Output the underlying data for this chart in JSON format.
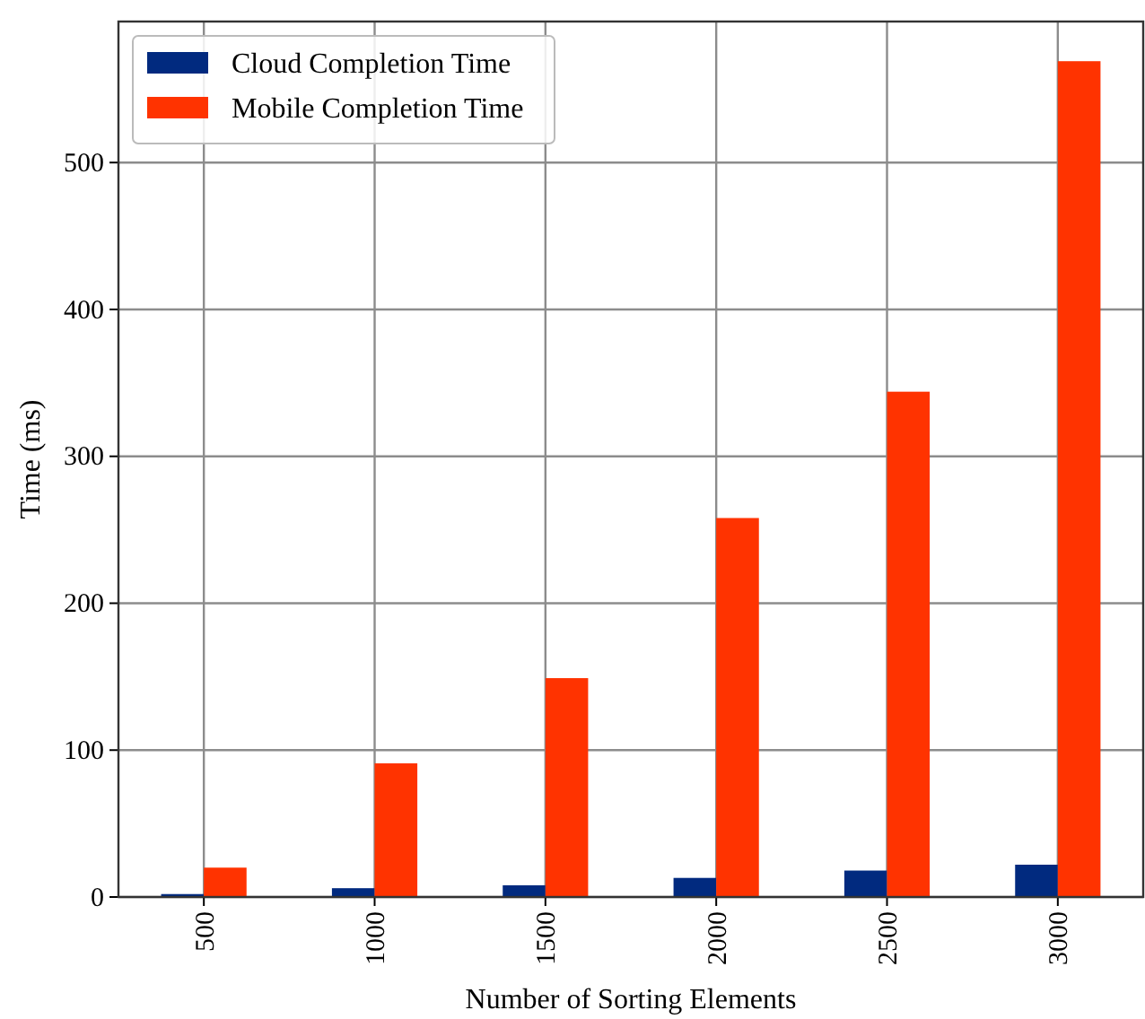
{
  "chart_data": {
    "type": "bar",
    "xlabel": "Number of Sorting Elements",
    "ylabel": "Time (ms)",
    "categories": [
      "500",
      "1000",
      "1500",
      "2000",
      "2500",
      "3000"
    ],
    "series": [
      {
        "name": "Cloud Completion Time",
        "color": "#012a7f",
        "values": [
          2,
          6,
          8,
          13,
          18,
          22
        ]
      },
      {
        "name": "Mobile Completion Time",
        "color": "#ff3300",
        "values": [
          20,
          91,
          149,
          258,
          344,
          569
        ]
      }
    ],
    "ylim": [
      0,
      596
    ],
    "yticks": [
      0,
      100,
      200,
      300,
      400,
      500
    ],
    "grid": true,
    "legend": "top left"
  }
}
